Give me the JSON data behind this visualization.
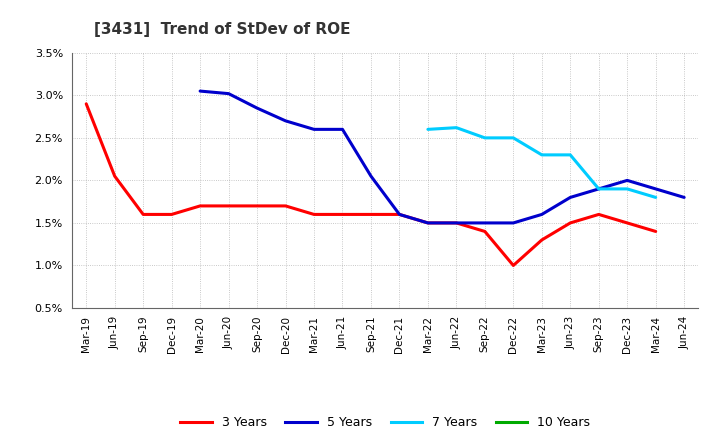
{
  "title": "[3431]  Trend of StDev of ROE",
  "x_labels": [
    "Mar-19",
    "Jun-19",
    "Sep-19",
    "Dec-19",
    "Mar-20",
    "Jun-20",
    "Sep-20",
    "Dec-20",
    "Mar-21",
    "Jun-21",
    "Sep-21",
    "Dec-21",
    "Mar-22",
    "Jun-22",
    "Sep-22",
    "Dec-22",
    "Mar-23",
    "Jun-23",
    "Sep-23",
    "Dec-23",
    "Mar-24",
    "Jun-24"
  ],
  "series": {
    "3 Years": {
      "color": "#FF0000",
      "data_y": [
        0.029,
        0.0205,
        0.016,
        0.016,
        0.017,
        0.017,
        0.017,
        0.017,
        0.016,
        0.016,
        0.016,
        0.016,
        0.015,
        0.015,
        0.014,
        0.01,
        0.013,
        0.015,
        0.016,
        0.015,
        0.014,
        null
      ]
    },
    "5 Years": {
      "color": "#0000CC",
      "data_y": [
        null,
        null,
        null,
        null,
        0.0305,
        0.0302,
        0.0285,
        0.027,
        0.026,
        0.026,
        0.0205,
        0.016,
        0.015,
        0.015,
        0.015,
        0.015,
        0.016,
        0.018,
        0.019,
        0.02,
        0.019,
        0.018
      ]
    },
    "7 Years": {
      "color": "#00CCFF",
      "data_y": [
        null,
        null,
        null,
        null,
        null,
        null,
        null,
        null,
        null,
        null,
        null,
        null,
        0.026,
        0.0262,
        0.025,
        0.025,
        0.023,
        0.023,
        0.019,
        0.019,
        0.018,
        null
      ]
    },
    "10 Years": {
      "color": "#00AA00",
      "data_y": [
        null,
        null,
        null,
        null,
        null,
        null,
        null,
        null,
        null,
        null,
        null,
        null,
        null,
        null,
        null,
        null,
        null,
        null,
        null,
        null,
        null,
        null
      ]
    }
  },
  "ylim": [
    0.005,
    0.035
  ],
  "yticks": [
    0.005,
    0.01,
    0.015,
    0.02,
    0.025,
    0.03,
    0.035
  ],
  "ytick_labels": [
    "0.5%",
    "1.0%",
    "1.5%",
    "2.0%",
    "2.5%",
    "3.0%",
    "3.5%"
  ],
  "background_color": "#FFFFFF",
  "plot_bg_color": "#FFFFFF",
  "grid_color": "#999999",
  "legend_order": [
    "3 Years",
    "5 Years",
    "7 Years",
    "10 Years"
  ],
  "line_width": 2.2
}
